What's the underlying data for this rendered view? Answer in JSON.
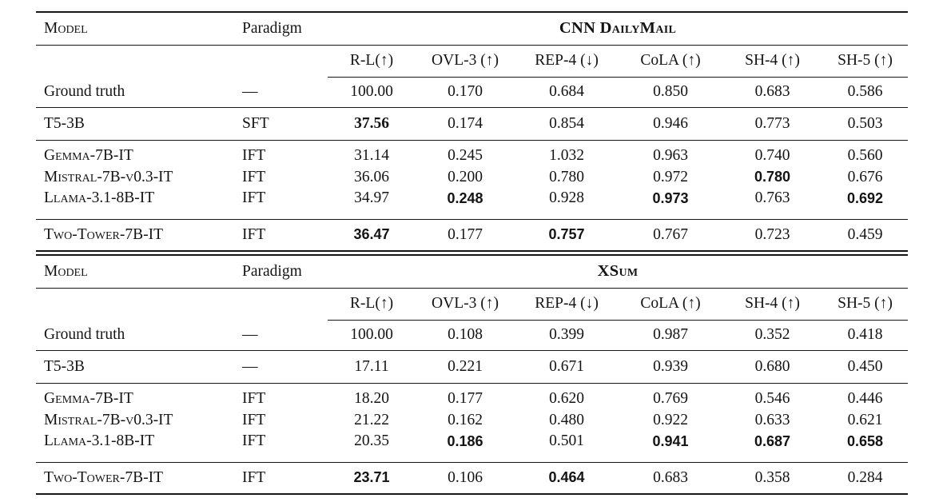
{
  "colors": {
    "background": "#ffffff",
    "text": "#141414",
    "rule": "#161616"
  },
  "tables": [
    {
      "dataset_title": "CNN DailyMail",
      "col_model": "Model",
      "col_paradigm": "Paradigm",
      "metrics": [
        "R-L(↑)",
        "OVL-3 (↑)",
        "REP-4 (↓)",
        "CoLA (↑)",
        "SH-4 (↑)",
        "SH-5 (↑)"
      ],
      "rows": [
        {
          "model": "Ground truth",
          "smallcaps": false,
          "paradigm": "—",
          "kind": "gt",
          "sep_after": true,
          "values": [
            "100.00",
            "0.170",
            "0.684",
            "0.850",
            "0.683",
            "0.586"
          ],
          "bold_sans": [],
          "bold_serif": []
        },
        {
          "model": "T5-3B",
          "smallcaps": false,
          "paradigm": "SFT",
          "kind": "t5",
          "sep_after": true,
          "values": [
            "37.56",
            "0.174",
            "0.854",
            "0.946",
            "0.773",
            "0.503"
          ],
          "bold_sans": [],
          "bold_serif": [
            0
          ]
        },
        {
          "model": "Gemma-7B-IT",
          "smallcaps": true,
          "paradigm": "IFT",
          "kind": "ift-first",
          "sep_after": false,
          "values": [
            "31.14",
            "0.245",
            "1.032",
            "0.963",
            "0.740",
            "0.560"
          ],
          "bold_sans": [],
          "bold_serif": []
        },
        {
          "model": "Mistral-7B-v0.3-IT",
          "smallcaps": true,
          "paradigm": "IFT",
          "kind": "ift",
          "sep_after": false,
          "values": [
            "36.06",
            "0.200",
            "0.780",
            "0.972",
            "0.780",
            "0.676"
          ],
          "bold_sans": [
            4
          ],
          "bold_serif": []
        },
        {
          "model": "Llama-3.1-8B-IT",
          "smallcaps": true,
          "paradigm": "IFT",
          "kind": "ift-last",
          "sep_after": true,
          "values": [
            "34.97",
            "0.248",
            "0.928",
            "0.973",
            "0.763",
            "0.692"
          ],
          "bold_sans": [
            1,
            3,
            5
          ],
          "bold_serif": []
        },
        {
          "model": "Two-Tower-7B-IT",
          "smallcaps": true,
          "paradigm": "IFT",
          "kind": "final",
          "sep_after": false,
          "values": [
            "36.47",
            "0.177",
            "0.757",
            "0.767",
            "0.723",
            "0.459"
          ],
          "bold_sans": [
            0,
            2
          ],
          "bold_serif": []
        }
      ]
    },
    {
      "dataset_title": "XSum",
      "col_model": "Model",
      "col_paradigm": "Paradigm",
      "metrics": [
        "R-L(↑)",
        "OVL-3 (↑)",
        "REP-4 (↓)",
        "CoLA (↑)",
        "SH-4 (↑)",
        "SH-5 (↑)"
      ],
      "rows": [
        {
          "model": "Ground truth",
          "smallcaps": false,
          "paradigm": "—",
          "kind": "gt",
          "sep_after": true,
          "values": [
            "100.00",
            "0.108",
            "0.399",
            "0.987",
            "0.352",
            "0.418"
          ],
          "bold_sans": [],
          "bold_serif": []
        },
        {
          "model": "T5-3B",
          "smallcaps": false,
          "paradigm": "—",
          "kind": "t5",
          "sep_after": true,
          "values": [
            "17.11",
            "0.221",
            "0.671",
            "0.939",
            "0.680",
            "0.450"
          ],
          "bold_sans": [],
          "bold_serif": []
        },
        {
          "model": "Gemma-7B-IT",
          "smallcaps": true,
          "paradigm": "IFT",
          "kind": "ift-first",
          "sep_after": false,
          "values": [
            "18.20",
            "0.177",
            "0.620",
            "0.769",
            "0.546",
            "0.446"
          ],
          "bold_sans": [],
          "bold_serif": []
        },
        {
          "model": "Mistral-7B-v0.3-IT",
          "smallcaps": true,
          "paradigm": "IFT",
          "kind": "ift",
          "sep_after": false,
          "values": [
            "21.22",
            "0.162",
            "0.480",
            "0.922",
            "0.633",
            "0.621"
          ],
          "bold_sans": [],
          "bold_serif": []
        },
        {
          "model": "Llama-3.1-8B-IT",
          "smallcaps": true,
          "paradigm": "IFT",
          "kind": "ift-last",
          "sep_after": true,
          "values": [
            "20.35",
            "0.186",
            "0.501",
            "0.941",
            "0.687",
            "0.658"
          ],
          "bold_sans": [
            1,
            3,
            4,
            5
          ],
          "bold_serif": []
        },
        {
          "model": "Two-Tower-7B-IT",
          "smallcaps": true,
          "paradigm": "IFT",
          "kind": "final",
          "sep_after": false,
          "values": [
            "23.71",
            "0.106",
            "0.464",
            "0.683",
            "0.358",
            "0.284"
          ],
          "bold_sans": [
            0,
            2
          ],
          "bold_serif": []
        }
      ]
    }
  ]
}
